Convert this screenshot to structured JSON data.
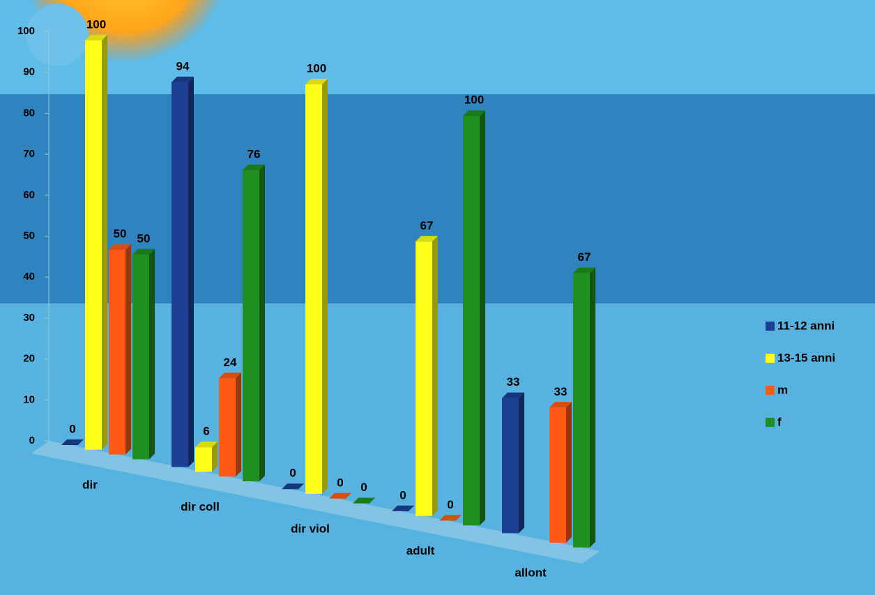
{
  "chart_data": {
    "type": "bar3d",
    "categories": [
      "dir",
      "dir coll",
      "dir viol",
      "adult",
      "allont"
    ],
    "series": [
      {
        "name": "11-12 anni",
        "color": "#1c3f94",
        "values": [
          0,
          94,
          0,
          0,
          33
        ]
      },
      {
        "name": "13-15 anni",
        "color": "#ffff1a",
        "values": [
          100,
          6,
          100,
          67,
          null
        ]
      },
      {
        "name": "m",
        "color": "#ff5a14",
        "values": [
          50,
          24,
          0,
          0,
          33
        ]
      },
      {
        "name": "f",
        "color": "#1f8f1f",
        "values": [
          50,
          76,
          0,
          100,
          67
        ]
      }
    ],
    "ylim": [
      0,
      100
    ],
    "yticks": [
      0,
      10,
      20,
      30,
      40,
      50,
      60,
      70,
      80,
      90,
      100
    ],
    "legend": "right"
  }
}
